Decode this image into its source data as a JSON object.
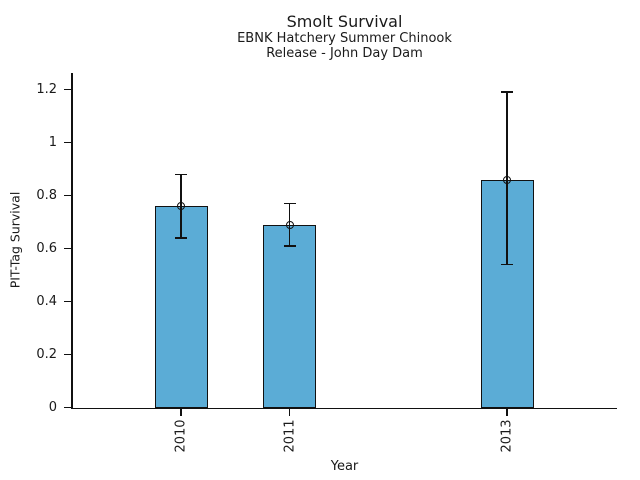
{
  "chart_data": {
    "type": "bar",
    "title": "Smolt Survival",
    "subtitle": [
      "EBNK Hatchery Summer Chinook",
      "Release - John Day Dam"
    ],
    "xlabel": "Year",
    "ylabel": "PIT-Tag Survival",
    "categories": [
      "2010",
      "2011",
      "2013"
    ],
    "x_numeric": [
      2010,
      2011,
      2013
    ],
    "values": [
      0.76,
      0.69,
      0.86
    ],
    "error_low": [
      0.64,
      0.61,
      0.54
    ],
    "error_high": [
      0.88,
      0.77,
      1.19
    ],
    "marker": "open-circle",
    "bar_color": "#5BACD6",
    "bar_edge_color": "#111111",
    "error_color": "#111111",
    "ylim": [
      0,
      1.26
    ],
    "xlim": [
      2009,
      2014
    ],
    "yticks": [
      0,
      0.2,
      0.4,
      0.6,
      0.8,
      1,
      1.2
    ],
    "ytick_labels": [
      "0",
      "0.2",
      "0.4",
      "0.6",
      "0.8",
      "1",
      "1.2"
    ],
    "grid": false,
    "legend": null,
    "background": "#ffffff"
  }
}
